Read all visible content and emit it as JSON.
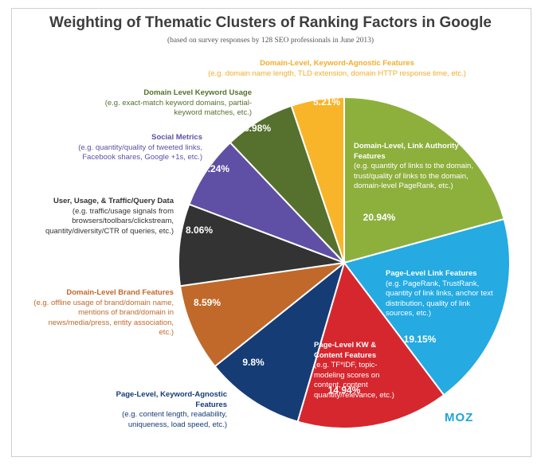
{
  "title": "Weighting of Thematic Clusters of Ranking Factors in Google",
  "subtitle": "(based on survey responses by 128 SEO professionals in June 2013)",
  "logo": "MOZ",
  "chart_data": {
    "type": "pie",
    "slices": [
      {
        "head": "Domain-Level, Link Authority Features",
        "desc": "(e.g. quantity of links to the domain, trust/quality of links to the domain, domain-level PageRank, etc.)",
        "value": 20.94,
        "pct_label": "20.94%",
        "color": "#8db03d"
      },
      {
        "head": "Page-Level Link Features",
        "desc": "(e.g. PageRank, TrustRank, quantity of link links, anchor text distribution, quality of link sources, etc.)",
        "value": 19.15,
        "pct_label": "19.15%",
        "color": "#25aae2"
      },
      {
        "head": "Page-Level KW & Content Features",
        "desc": "(e.g. TF*IDF, topic-modeling scores on content, content quantity/relevance, etc.)",
        "value": 14.94,
        "pct_label": "14.94%",
        "color": "#d6272f"
      },
      {
        "head": "Page-Level, Keyword-Agnostic Features",
        "desc": "(e.g. content length, readability, uniqueness, load speed, etc.)",
        "value": 9.8,
        "pct_label": "9.8%",
        "color": "#163c75"
      },
      {
        "head": "Domain-Level Brand Features",
        "desc": "(e.g. offline usage of brand/domain name, mentions of brand/domain in news/media/press, entity association, etc.)",
        "value": 8.59,
        "pct_label": "8.59%",
        "color": "#c0692a"
      },
      {
        "head": "User, Usage, & Traffic/Query Data",
        "desc": "(e.g. traffic/usage signals from browsers/toolbars/clickstream, quantity/diversity/CTR of queries, etc.)",
        "value": 8.06,
        "pct_label": "8.06%",
        "color": "#333333"
      },
      {
        "head": "Social Metrics",
        "desc": "(e.g. quantity/quality of tweeted links, Facebook shares, Google +1s, etc.)",
        "value": 7.24,
        "pct_label": "7.24%",
        "color": "#5f4fa5"
      },
      {
        "head": "Domain Level Keyword Usage",
        "desc": "(e.g. exact-match keyword domains, partial-keyword matches, etc.)",
        "value": 6.98,
        "pct_label": "6.98%",
        "color": "#56702e"
      },
      {
        "head": "Domain-Level, Keyword-Agnostic Features",
        "desc": "(e.g. domain name length, TLD extension, domain HTTP response time, etc.)",
        "value": 5.21,
        "pct_label": "5.21%",
        "color": "#f9b52a"
      }
    ]
  },
  "label_colors": [
    "#ffffff",
    "#ffffff",
    "#ffffff",
    "#163c75",
    "#c0692a",
    "#333333",
    "#5f4fa5",
    "#56702e",
    "#f3ad2a"
  ]
}
